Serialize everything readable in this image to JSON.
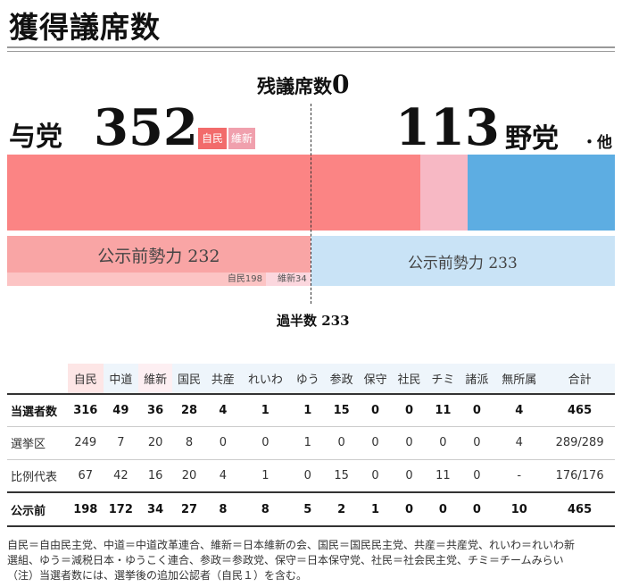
{
  "title": "獲得議席数",
  "remaining": {
    "label": "残議席数",
    "value": "0"
  },
  "ruling": {
    "label": "与党",
    "seats": "352",
    "badges": [
      "自民",
      "維新"
    ]
  },
  "opposition": {
    "label": "野党",
    "suffix": "・他",
    "seats": "113"
  },
  "pre_election": {
    "ruling_label": "公示前勢力 232",
    "opposition_label": "公示前勢力 233",
    "ldp_label": "自民198",
    "ishin_label": "維新34"
  },
  "majority_label": "過半数 233",
  "colors": {
    "ldp": "#fb8484",
    "ishin": "#f7b8c4",
    "opposition": "#5dade2",
    "pre_ruling": "#f9a5a5",
    "pre_opp": "#c9e3f6"
  },
  "chart_data": {
    "type": "bar",
    "total_seats": 465,
    "majority": 233,
    "remaining": 0,
    "result": {
      "ldp": 316,
      "ishin": 36,
      "opposition": 113
    },
    "pre_election": {
      "ldp": 198,
      "ishin": 34,
      "ruling": 232,
      "opposition": 233
    }
  },
  "table": {
    "headers": [
      "",
      "自民",
      "中道",
      "維新",
      "国民",
      "共産",
      "れいわ",
      "ゆう",
      "参政",
      "保守",
      "社民",
      "チミ",
      "諸派",
      "無所属",
      "合計"
    ],
    "rows": [
      {
        "label": "当選者数",
        "cells": [
          "316",
          "49",
          "36",
          "28",
          "4",
          "1",
          "1",
          "15",
          "0",
          "0",
          "11",
          "0",
          "4",
          "465"
        ]
      },
      {
        "label": "選挙区",
        "cells": [
          "249",
          "7",
          "20",
          "8",
          "0",
          "0",
          "1",
          "0",
          "0",
          "0",
          "0",
          "0",
          "4",
          "289/289"
        ]
      },
      {
        "label": "比例代表",
        "cells": [
          "67",
          "42",
          "16",
          "20",
          "4",
          "1",
          "0",
          "15",
          "0",
          "0",
          "11",
          "0",
          "-",
          "176/176"
        ]
      },
      {
        "label": "公示前",
        "cells": [
          "198",
          "172",
          "34",
          "27",
          "8",
          "8",
          "5",
          "2",
          "1",
          "0",
          "0",
          "0",
          "10",
          "465"
        ]
      }
    ]
  },
  "notes": [
    "自民＝自由民主党、中道＝中道改革連合、維新＝日本維新の会、国民＝国民民主党、共産＝共産党、れいわ＝れいわ新",
    "選組、ゆう＝減税日本・ゆうこく連合、参政＝参政党、保守＝日本保守党、社民＝社会民主党、チミ＝チームみらい",
    "（注）当選者数には、選挙後の追加公認者（自民１）を含む。"
  ]
}
